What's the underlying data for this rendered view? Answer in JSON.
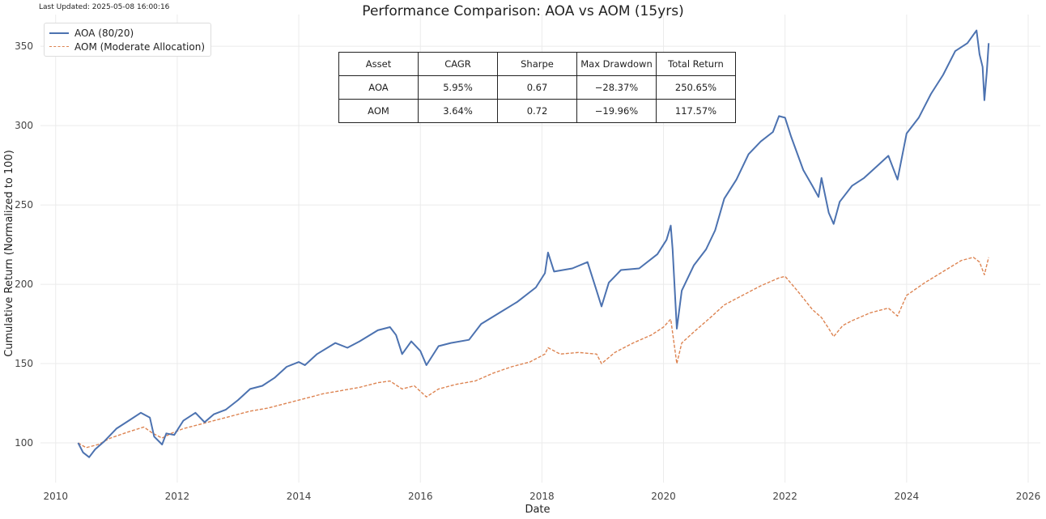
{
  "last_updated": "Last Updated: 2025-05-08 16:00:16",
  "chart_data": {
    "type": "line",
    "title": "Performance Comparison: AOA vs AOM (15yrs)",
    "xlabel": "Date",
    "ylabel": "Cumulative Return (Normalized to 100)",
    "xlim": [
      2009.75,
      2026.2
    ],
    "ylim": [
      75,
      370
    ],
    "x_ticks": [
      2010,
      2012,
      2014,
      2016,
      2018,
      2020,
      2022,
      2024,
      2026
    ],
    "y_ticks": [
      100,
      150,
      200,
      250,
      300,
      350
    ],
    "grid": true,
    "legend_position": "top-left",
    "series": [
      {
        "name": "AOA (80/20)",
        "color": "#4c72b0",
        "style": "solid",
        "points": [
          [
            2010.37,
            100
          ],
          [
            2010.45,
            94
          ],
          [
            2010.55,
            91
          ],
          [
            2010.65,
            96
          ],
          [
            2010.8,
            101
          ],
          [
            2011.0,
            109
          ],
          [
            2011.2,
            114
          ],
          [
            2011.4,
            119
          ],
          [
            2011.55,
            116
          ],
          [
            2011.62,
            104
          ],
          [
            2011.75,
            99
          ],
          [
            2011.82,
            106
          ],
          [
            2011.95,
            105
          ],
          [
            2012.1,
            114
          ],
          [
            2012.3,
            119
          ],
          [
            2012.45,
            113
          ],
          [
            2012.6,
            118
          ],
          [
            2012.8,
            121
          ],
          [
            2013.0,
            127
          ],
          [
            2013.2,
            134
          ],
          [
            2013.4,
            136
          ],
          [
            2013.6,
            141
          ],
          [
            2013.8,
            148
          ],
          [
            2014.0,
            151
          ],
          [
            2014.1,
            149
          ],
          [
            2014.3,
            156
          ],
          [
            2014.6,
            163
          ],
          [
            2014.8,
            160
          ],
          [
            2015.0,
            164
          ],
          [
            2015.3,
            171
          ],
          [
            2015.5,
            173
          ],
          [
            2015.6,
            168
          ],
          [
            2015.7,
            156
          ],
          [
            2015.85,
            164
          ],
          [
            2016.0,
            158
          ],
          [
            2016.1,
            149
          ],
          [
            2016.3,
            161
          ],
          [
            2016.5,
            163
          ],
          [
            2016.8,
            165
          ],
          [
            2017.0,
            175
          ],
          [
            2017.3,
            182
          ],
          [
            2017.6,
            189
          ],
          [
            2017.9,
            198
          ],
          [
            2018.05,
            207
          ],
          [
            2018.1,
            220
          ],
          [
            2018.2,
            208
          ],
          [
            2018.5,
            210
          ],
          [
            2018.75,
            214
          ],
          [
            2018.9,
            196
          ],
          [
            2018.98,
            186
          ],
          [
            2019.1,
            201
          ],
          [
            2019.3,
            209
          ],
          [
            2019.6,
            210
          ],
          [
            2019.9,
            219
          ],
          [
            2020.05,
            228
          ],
          [
            2020.12,
            237
          ],
          [
            2020.15,
            222
          ],
          [
            2020.22,
            172
          ],
          [
            2020.3,
            196
          ],
          [
            2020.5,
            212
          ],
          [
            2020.7,
            222
          ],
          [
            2020.85,
            234
          ],
          [
            2021.0,
            254
          ],
          [
            2021.2,
            266
          ],
          [
            2021.4,
            282
          ],
          [
            2021.6,
            290
          ],
          [
            2021.8,
            296
          ],
          [
            2021.9,
            306
          ],
          [
            2022.0,
            305
          ],
          [
            2022.1,
            293
          ],
          [
            2022.3,
            272
          ],
          [
            2022.45,
            262
          ],
          [
            2022.55,
            255
          ],
          [
            2022.6,
            267
          ],
          [
            2022.72,
            245
          ],
          [
            2022.8,
            238
          ],
          [
            2022.9,
            252
          ],
          [
            2023.1,
            262
          ],
          [
            2023.3,
            267
          ],
          [
            2023.5,
            274
          ],
          [
            2023.7,
            281
          ],
          [
            2023.85,
            266
          ],
          [
            2024.0,
            295
          ],
          [
            2024.2,
            305
          ],
          [
            2024.4,
            320
          ],
          [
            2024.6,
            332
          ],
          [
            2024.8,
            347
          ],
          [
            2025.0,
            352
          ],
          [
            2025.15,
            360
          ],
          [
            2025.2,
            345
          ],
          [
            2025.25,
            337
          ],
          [
            2025.28,
            316
          ],
          [
            2025.32,
            334
          ],
          [
            2025.35,
            352
          ]
        ]
      },
      {
        "name": "AOM (Moderate Allocation)",
        "color": "#dd8452",
        "style": "dashed",
        "points": [
          [
            2010.37,
            100
          ],
          [
            2010.5,
            97
          ],
          [
            2010.7,
            99
          ],
          [
            2010.9,
            103
          ],
          [
            2011.2,
            107
          ],
          [
            2011.45,
            110
          ],
          [
            2011.6,
            106
          ],
          [
            2011.75,
            103
          ],
          [
            2011.9,
            106
          ],
          [
            2012.1,
            109
          ],
          [
            2012.3,
            111
          ],
          [
            2012.6,
            114
          ],
          [
            2012.9,
            117
          ],
          [
            2013.2,
            120
          ],
          [
            2013.5,
            122
          ],
          [
            2013.8,
            125
          ],
          [
            2014.1,
            128
          ],
          [
            2014.4,
            131
          ],
          [
            2014.7,
            133
          ],
          [
            2015.0,
            135
          ],
          [
            2015.3,
            138
          ],
          [
            2015.5,
            139
          ],
          [
            2015.7,
            134
          ],
          [
            2015.9,
            136
          ],
          [
            2016.1,
            129
          ],
          [
            2016.3,
            134
          ],
          [
            2016.6,
            137
          ],
          [
            2016.9,
            139
          ],
          [
            2017.2,
            144
          ],
          [
            2017.5,
            148
          ],
          [
            2017.8,
            151
          ],
          [
            2018.05,
            156
          ],
          [
            2018.1,
            160
          ],
          [
            2018.3,
            156
          ],
          [
            2018.6,
            157
          ],
          [
            2018.9,
            156
          ],
          [
            2018.98,
            150
          ],
          [
            2019.2,
            157
          ],
          [
            2019.5,
            163
          ],
          [
            2019.8,
            168
          ],
          [
            2020.0,
            173
          ],
          [
            2020.12,
            178
          ],
          [
            2020.22,
            150
          ],
          [
            2020.3,
            163
          ],
          [
            2020.5,
            170
          ],
          [
            2020.8,
            180
          ],
          [
            2021.0,
            187
          ],
          [
            2021.3,
            193
          ],
          [
            2021.6,
            199
          ],
          [
            2021.9,
            204
          ],
          [
            2022.0,
            205
          ],
          [
            2022.2,
            196
          ],
          [
            2022.45,
            184
          ],
          [
            2022.6,
            179
          ],
          [
            2022.72,
            172
          ],
          [
            2022.8,
            167
          ],
          [
            2022.95,
            174
          ],
          [
            2023.1,
            177
          ],
          [
            2023.4,
            182
          ],
          [
            2023.7,
            185
          ],
          [
            2023.85,
            180
          ],
          [
            2024.0,
            193
          ],
          [
            2024.3,
            201
          ],
          [
            2024.6,
            208
          ],
          [
            2024.9,
            215
          ],
          [
            2025.1,
            217
          ],
          [
            2025.2,
            214
          ],
          [
            2025.28,
            206
          ],
          [
            2025.35,
            217
          ]
        ]
      }
    ]
  },
  "summary_table": {
    "headers": [
      "Asset",
      "CAGR",
      "Sharpe",
      "Max Drawdown",
      "Total Return"
    ],
    "rows": [
      [
        "AOA",
        "5.95%",
        "0.67",
        "−28.37%",
        "250.65%"
      ],
      [
        "AOM",
        "3.64%",
        "0.72",
        "−19.96%",
        "117.57%"
      ]
    ]
  }
}
